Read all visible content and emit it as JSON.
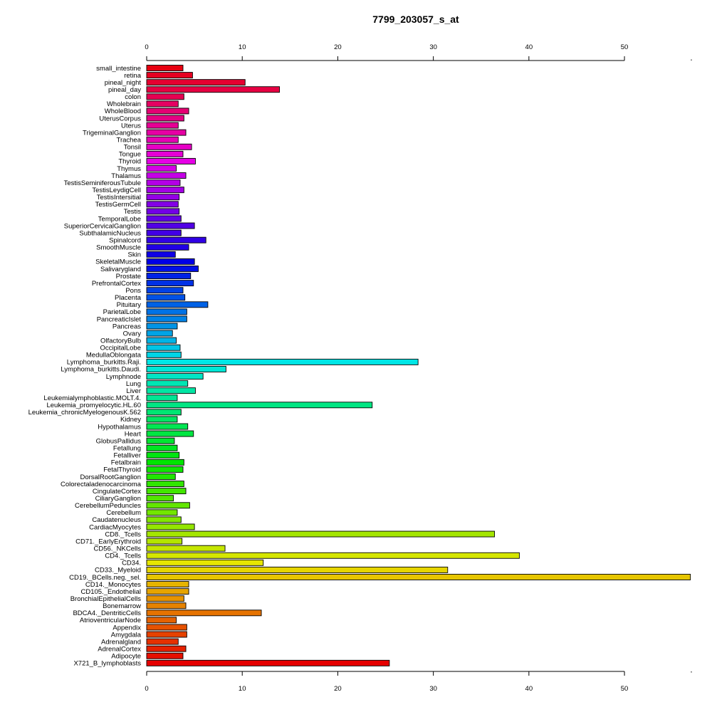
{
  "chart_data": {
    "type": "bar",
    "orientation": "horizontal",
    "title": "7799_203057_s_at",
    "xlabel": "",
    "ylabel": "",
    "xlim": [
      0,
      57
    ],
    "xticks": [
      0,
      10,
      20,
      30,
      40,
      50
    ],
    "grid": false,
    "legend": "none",
    "categories": [
      "small_intestine",
      "retina",
      "pineal_night",
      "pineal_day",
      "colon",
      "Wholebrain",
      "WholeBlood",
      "UterusCorpus",
      "Uterus",
      "TrigeminalGanglion",
      "Trachea",
      "Tonsil",
      "Tongue",
      "Thyroid",
      "Thymus",
      "Thalamus",
      "TestisSeminiferousTubule",
      "TestisLeydigCell",
      "TestisIntersitial",
      "TestisGermCell",
      "Testis",
      "TemporalLobe",
      "SuperiorCervicalGanglion",
      "SubthalamicNucleus",
      "Spinalcord",
      "SmoothMuscle",
      "Skin",
      "SkeletalMuscle",
      "Salivarygland",
      "Prostate",
      "PrefrontalCortex",
      "Pons",
      "Placenta",
      "Pituitary",
      "ParietalLobe",
      "PancreaticIslet",
      "Pancreas",
      "Ovary",
      "OlfactoryBulb",
      "OccipitalLobe",
      "MedullaOblongata",
      "Lymphoma_burkitts.Raji.",
      "Lymphoma_burkitts.Daudi.",
      "Lymphnode",
      "Lung",
      "Liver",
      "Leukemialymphoblastic.MOLT.4.",
      "Leukemia_promyelocytic.HL.60",
      "Leukemia_chronicMyelogenousK.562",
      "Kidney",
      "Hypothalamus",
      "Heart",
      "GlobusPallidus",
      "Fetallung",
      "Fetalliver",
      "Fetalbrain",
      "FetalThyroid",
      "DorsalRootGanglion",
      "Colorectaladenocarcinoma",
      "CingulateCortex",
      "CiliaryGanglion",
      "CerebellumPeduncles",
      "Cerebellum",
      "Caudatenucleus",
      "CardiacMyocytes",
      "CD8._Tcells",
      "CD71._EarlyErythroid",
      "CD56._NKCells",
      "CD4._Tcells",
      "CD34.",
      "CD33._Myeloid",
      "CD19._BCells.neg._sel.",
      "CD14._Monocytes",
      "CD105._Endothelial",
      "BronchialEpithelialCells",
      "Bonemarrow",
      "BDCA4._DentriticCells",
      "AtrioventricularNode",
      "Appendix",
      "Amygdala",
      "Adrenalgland",
      "AdrenalCortex",
      "Adipocyte",
      "X721_B_lymphoblasts"
    ],
    "values": [
      3.8,
      4.8,
      10.3,
      13.9,
      3.9,
      3.3,
      4.4,
      3.9,
      3.3,
      4.1,
      3.3,
      4.7,
      3.8,
      5.1,
      3.1,
      4.1,
      3.5,
      3.9,
      3.4,
      3.3,
      3.4,
      3.6,
      5.0,
      3.6,
      6.2,
      4.4,
      3.0,
      5.0,
      5.4,
      4.6,
      4.9,
      3.8,
      4.0,
      6.4,
      4.2,
      4.2,
      3.2,
      2.7,
      3.1,
      3.5,
      3.6,
      28.4,
      8.3,
      5.9,
      4.3,
      5.1,
      3.2,
      23.6,
      3.6,
      3.2,
      4.3,
      4.9,
      2.9,
      3.2,
      3.4,
      3.9,
      3.8,
      3.0,
      3.9,
      4.1,
      2.8,
      4.5,
      3.2,
      3.6,
      5.0,
      36.4,
      3.7,
      8.2,
      39.0,
      12.2,
      31.5,
      56.9,
      4.4,
      4.4,
      3.9,
      4.1,
      12.0,
      3.1,
      4.2,
      4.2,
      3.3,
      4.1,
      3.8,
      25.4
    ]
  }
}
